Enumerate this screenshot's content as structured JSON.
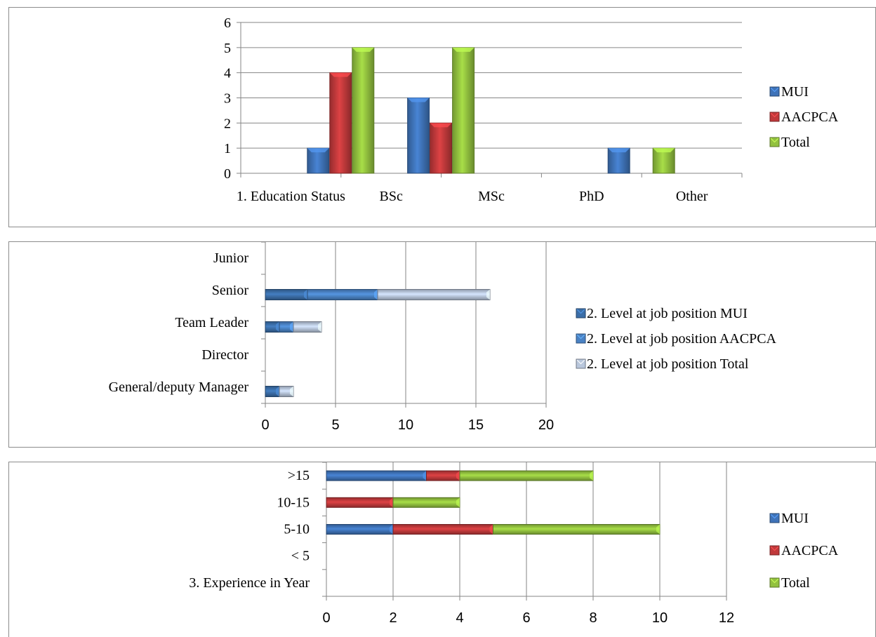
{
  "colors": {
    "mui": "#3f73b8",
    "aacpca": "#c0393b",
    "total": "#92c13f",
    "level_mui": "#3b6ea8",
    "level_aacpca": "#4a82c4",
    "level_total": "#b9c7dc",
    "grid": "#868686",
    "axis": "#868686"
  },
  "chart_data": [
    {
      "type": "bar",
      "categories": [
        "1. Education Status",
        "BSc",
        "MSc",
        "PhD",
        "Other"
      ],
      "series": [
        {
          "name": "MUI",
          "values": [
            1,
            3,
            0,
            1,
            0
          ]
        },
        {
          "name": "AACPCA",
          "values": [
            4,
            2,
            0,
            0,
            0
          ]
        },
        {
          "name": "Total",
          "values": [
            5,
            5,
            0,
            1,
            0
          ]
        }
      ],
      "ylim": [
        0,
        6
      ],
      "yticks": [
        "0",
        "1",
        "2",
        "3",
        "4",
        "5",
        "6"
      ],
      "legend_position": "right",
      "grid": true
    },
    {
      "type": "bar",
      "orientation": "horizontal",
      "stacked": true,
      "categories": [
        "General/deputy Manager",
        "Director",
        "Team Leader",
        "Senior",
        "Junior"
      ],
      "series": [
        {
          "name": "2. Level  at job position MUI",
          "values": [
            1,
            0,
            1,
            3,
            0
          ]
        },
        {
          "name": "2. Level  at job position AACPCA",
          "values": [
            0,
            0,
            1,
            5,
            0
          ]
        },
        {
          "name": "2. Level  at job position Total",
          "values": [
            1,
            0,
            2,
            8,
            0
          ]
        }
      ],
      "xlim": [
        0,
        20
      ],
      "xticks": [
        "0",
        "5",
        "10",
        "15",
        "20"
      ],
      "legend_position": "right",
      "grid": true
    },
    {
      "type": "bar",
      "orientation": "horizontal",
      "stacked": true,
      "categories": [
        "3. Experience in Year",
        "< 5",
        "5-10",
        "10-15",
        ">15"
      ],
      "series": [
        {
          "name": "MUI",
          "values": [
            0,
            0,
            2,
            0,
            3
          ]
        },
        {
          "name": "AACPCA",
          "values": [
            0,
            0,
            3,
            2,
            1
          ]
        },
        {
          "name": "Total",
          "values": [
            0,
            0,
            5,
            2,
            4
          ]
        }
      ],
      "xlim": [
        0,
        12
      ],
      "xticks": [
        "0",
        "2",
        "4",
        "6",
        "8",
        "10",
        "12"
      ],
      "legend_position": "right",
      "grid": true
    }
  ]
}
